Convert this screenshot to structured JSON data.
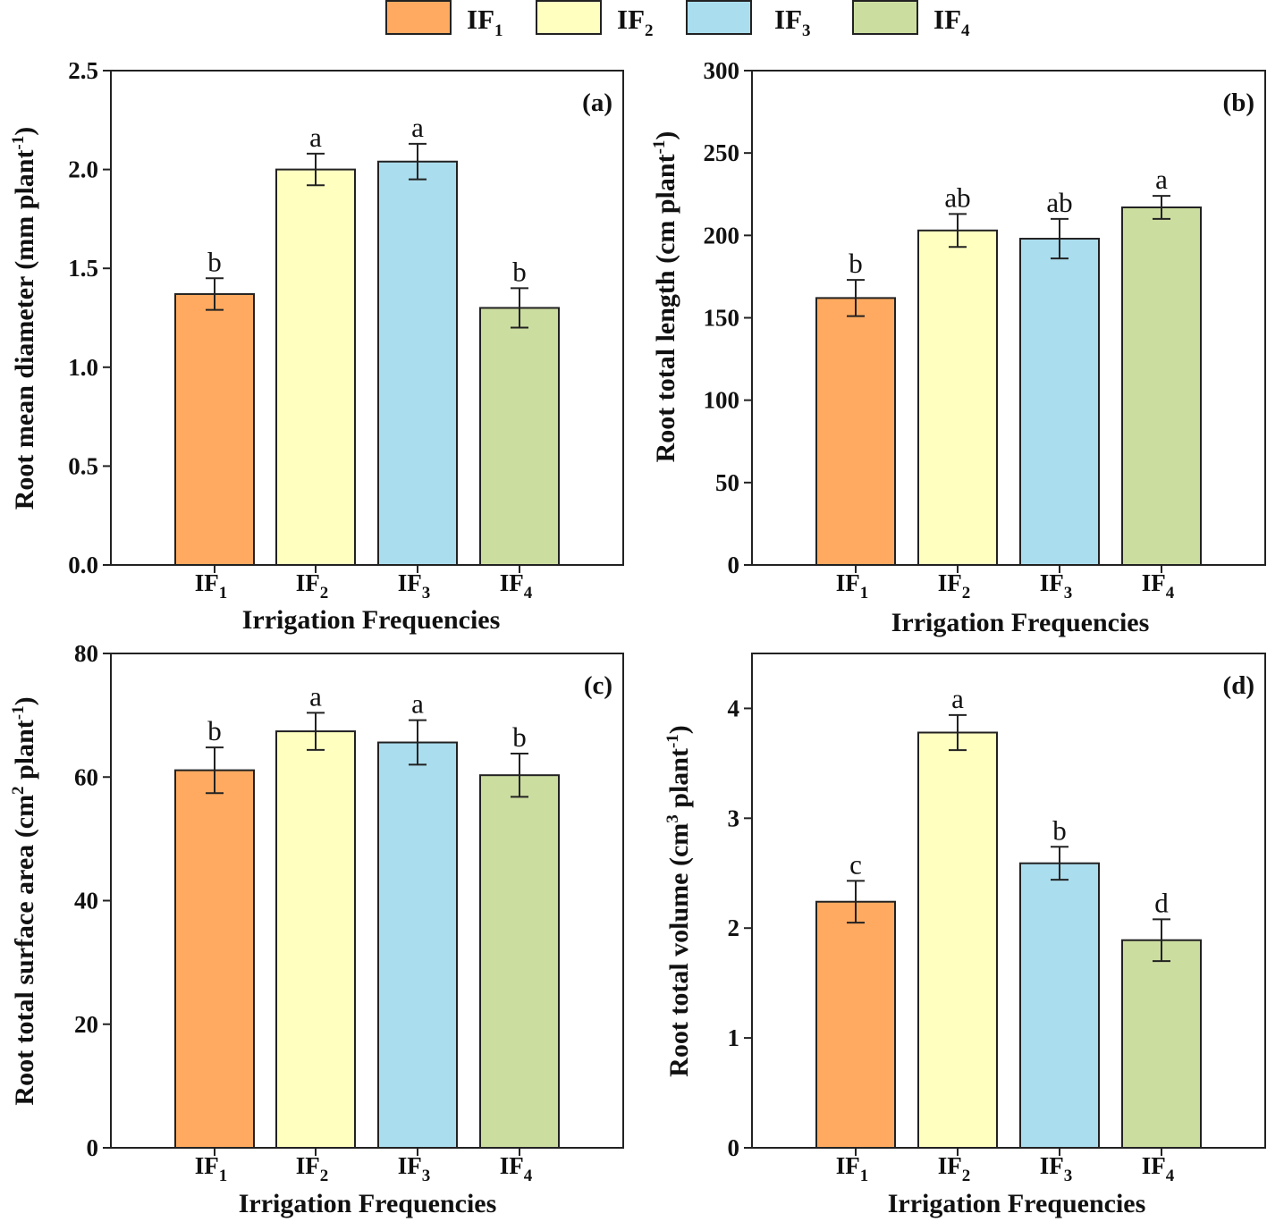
{
  "legend": [
    {
      "base": "IF",
      "sub": "1",
      "color": "#FFAA60"
    },
    {
      "base": "IF",
      "sub": "2",
      "color": "#FFFFC0"
    },
    {
      "base": "IF",
      "sub": "3",
      "color": "#AADDEE"
    },
    {
      "base": "IF",
      "sub": "4",
      "color": "#CCDDA0"
    }
  ],
  "chart_data": [
    {
      "type": "bar",
      "panel_label": "(a)",
      "ylabel": {
        "pre": "Root mean diameter (mm plant",
        "sup": "-1",
        "post": ")"
      },
      "xlabel": "Irrigation Frequencies",
      "categories": [
        {
          "base": "IF",
          "sub": "1"
        },
        {
          "base": "IF",
          "sub": "2"
        },
        {
          "base": "IF",
          "sub": "3"
        },
        {
          "base": "IF",
          "sub": "4"
        }
      ],
      "values": [
        1.37,
        2.0,
        2.04,
        1.3
      ],
      "errors": [
        0.08,
        0.08,
        0.09,
        0.1
      ],
      "letters": [
        "b",
        "a",
        "a",
        "b"
      ],
      "ylim": [
        0,
        2.5
      ],
      "yticks": [
        0,
        0.5,
        1.0,
        1.5,
        2.0,
        2.5
      ],
      "ytick_labels": [
        "0.0",
        "0.5",
        "1.0",
        "1.5",
        "2.0",
        "2.5"
      ]
    },
    {
      "type": "bar",
      "panel_label": "(b)",
      "ylabel": {
        "pre": "Root total length (cm plant",
        "sup": "-1",
        "post": ")"
      },
      "xlabel": "Irrigation Frequencies",
      "categories": [
        {
          "base": "IF",
          "sub": "1"
        },
        {
          "base": "IF",
          "sub": "2"
        },
        {
          "base": "IF",
          "sub": "3"
        },
        {
          "base": "IF",
          "sub": "4"
        }
      ],
      "values": [
        162,
        203,
        198,
        217
      ],
      "errors": [
        11,
        10,
        12,
        7
      ],
      "letters": [
        "b",
        "ab",
        "ab",
        "a"
      ],
      "ylim": [
        0,
        300
      ],
      "yticks": [
        0,
        50,
        100,
        150,
        200,
        250,
        300
      ],
      "ytick_labels": [
        "0",
        "50",
        "100",
        "150",
        "200",
        "250",
        "300"
      ]
    },
    {
      "type": "bar",
      "panel_label": "(c)",
      "ylabel": {
        "pre": "Root total surface area (cm",
        "sup": "2",
        "mid": " plant",
        "sup2": "-1",
        "post": ")"
      },
      "xlabel": "Irrigation Frequencies",
      "categories": [
        {
          "base": "IF",
          "sub": "1"
        },
        {
          "base": "IF",
          "sub": "2"
        },
        {
          "base": "IF",
          "sub": "3"
        },
        {
          "base": "IF",
          "sub": "4"
        }
      ],
      "values": [
        61.1,
        67.4,
        65.6,
        60.3
      ],
      "errors": [
        3.7,
        3.0,
        3.6,
        3.5
      ],
      "letters": [
        "b",
        "a",
        "a",
        "b"
      ],
      "ylim": [
        0,
        80
      ],
      "yticks": [
        0,
        20,
        40,
        60,
        80
      ],
      "ytick_labels": [
        "0",
        "20",
        "40",
        "60",
        "80"
      ]
    },
    {
      "type": "bar",
      "panel_label": "(d)",
      "ylabel": {
        "pre": "Root total volume (cm",
        "sup": "3",
        "mid": " plant",
        "sup2": "-1",
        "post": ")"
      },
      "xlabel": "Irrigation Frequencies",
      "categories": [
        {
          "base": "IF",
          "sub": "1"
        },
        {
          "base": "IF",
          "sub": "2"
        },
        {
          "base": "IF",
          "sub": "3"
        },
        {
          "base": "IF",
          "sub": "4"
        }
      ],
      "values": [
        2.24,
        3.78,
        2.59,
        1.89
      ],
      "errors": [
        0.19,
        0.16,
        0.15,
        0.19
      ],
      "letters": [
        "c",
        "a",
        "b",
        "d"
      ],
      "ylim": [
        0,
        4.5
      ],
      "yticks": [
        0,
        1,
        2,
        3,
        4
      ],
      "ytick_labels": [
        "0",
        "1",
        "2",
        "3",
        "4"
      ]
    }
  ]
}
